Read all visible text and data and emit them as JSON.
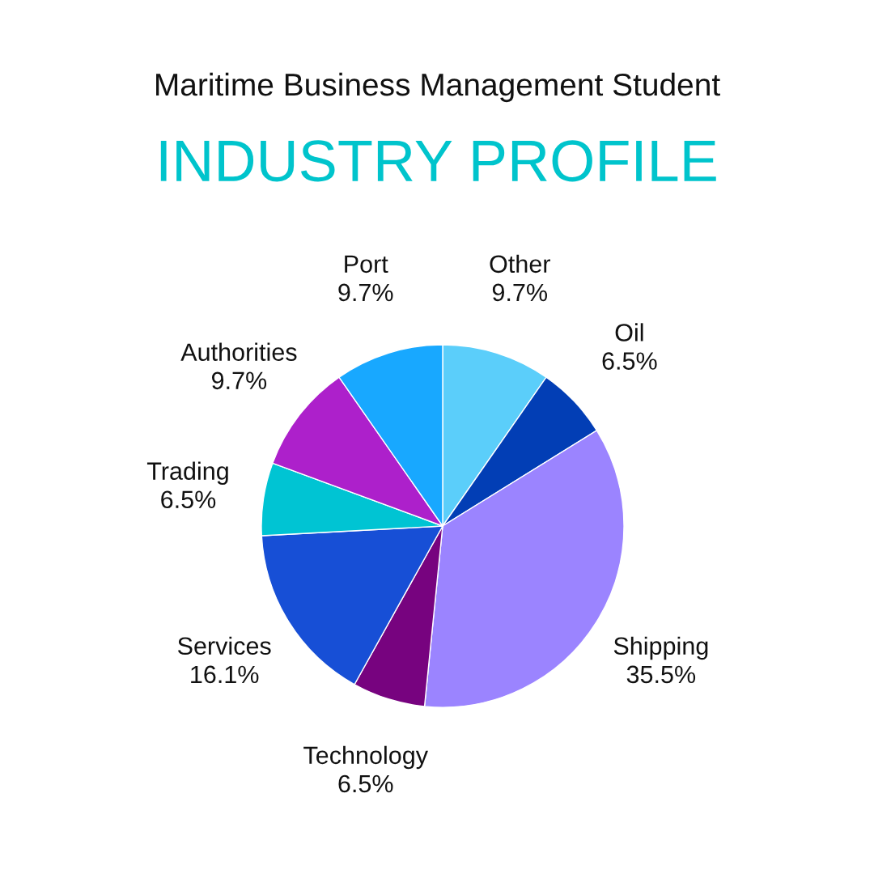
{
  "chart_data": {
    "type": "pie",
    "title": "INDUSTRY PROFILE",
    "subtitle": "Maritime Business Management Student",
    "categories": [
      "Other",
      "Oil",
      "Shipping",
      "Technology",
      "Services",
      "Trading",
      "Authorities",
      "Port"
    ],
    "values": [
      9.7,
      6.5,
      35.5,
      6.5,
      16.1,
      6.5,
      9.7,
      9.7
    ],
    "value_labels": [
      "9.7%",
      "6.5%",
      "35.5%",
      "6.5%",
      "16.1%",
      "6.5%",
      "9.7%",
      "9.7%"
    ],
    "colors": [
      "#5bcefa",
      "#023eb5",
      "#9b84ff",
      "#77037f",
      "#174fd6",
      "#00c4d3",
      "#ad20cb",
      "#18a8ff"
    ],
    "legend": false
  }
}
